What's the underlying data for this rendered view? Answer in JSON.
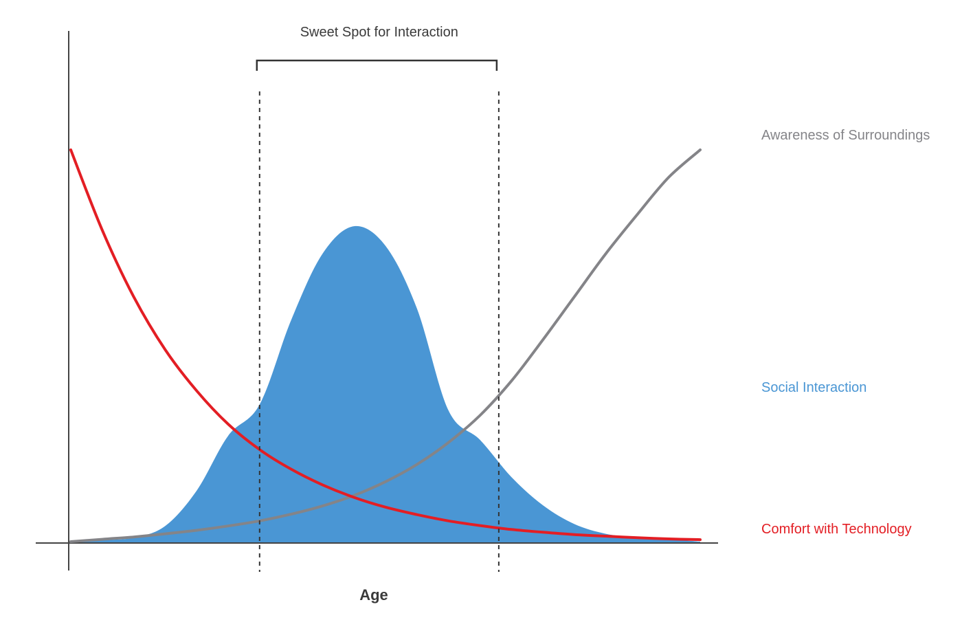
{
  "chart_data": {
    "type": "area",
    "title": "",
    "xlabel": "Age",
    "ylabel": "",
    "grid": false,
    "legend": "right",
    "x": [
      0,
      5,
      10,
      15,
      20,
      25,
      30,
      35,
      40,
      45,
      50,
      55,
      60,
      65,
      70,
      75,
      80,
      85,
      90,
      95,
      100
    ],
    "xlim": [
      0,
      100
    ],
    "ylim": [
      0,
      100
    ],
    "series": [
      {
        "name": "Awareness of Surroundings",
        "color": "#848488",
        "style": "line",
        "values": [
          0,
          0.6,
          1.2,
          2.0,
          2.9,
          4.0,
          5.3,
          7.0,
          9.1,
          11.8,
          15.3,
          19.7,
          25.3,
          32.2,
          41.0,
          51.5,
          62.5,
          73.5,
          83.5,
          93,
          100
        ]
      },
      {
        "name": "Social Interaction",
        "color": "#4a96d4",
        "style": "area",
        "values": [
          0,
          0.4,
          1.0,
          4.0,
          13.0,
          27.0,
          35.0,
          56.5,
          73.5,
          80.5,
          75.5,
          59.5,
          33.5,
          26.0,
          16.5,
          9.3,
          4.5,
          2.0,
          1.0,
          0.6,
          0
        ]
      },
      {
        "name": "Comfort with Technology",
        "color": "#e31e24",
        "style": "line",
        "values": [
          100,
          79.5,
          62.5,
          49.0,
          38.5,
          30.0,
          23.5,
          18.5,
          14.5,
          11.3,
          8.8,
          6.9,
          5.3,
          4.1,
          3.1,
          2.4,
          1.8,
          1.4,
          1.0,
          0.7,
          0.5
        ]
      }
    ],
    "annotations": {
      "sweet_spot_label": "Sweet Spot for Interaction",
      "sweet_spot_range": [
        30,
        68
      ]
    }
  }
}
